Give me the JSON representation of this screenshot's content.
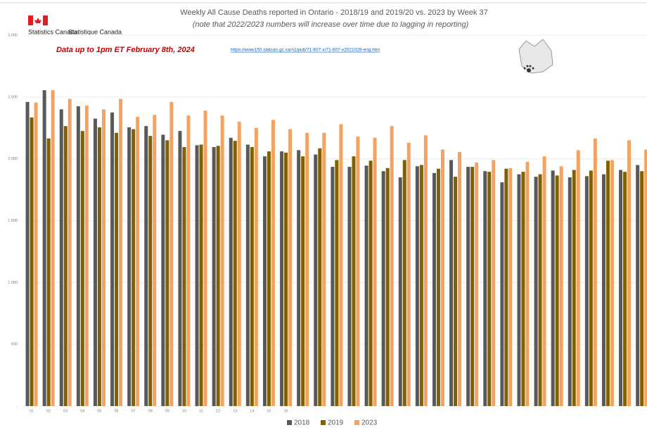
{
  "chart_data": {
    "type": "bar",
    "title": "Weekly All Cause Deaths reported in Ontario - 2018/19 and 2019/20 vs. 2023 by Week 37",
    "subtitle": "(note that 2022/2023 numbers will increase over time due to lagging in reporting)",
    "agency_en": "Statistics Canada",
    "agency_fr": "Statistique Canada",
    "note": "Data up to 1pm ET February 8th, 2024",
    "link": "https://www150.statcan.gc.ca/n1/pub/71-607-x/71-607-x2021028-eng.htm",
    "categories": [
      "01",
      "02",
      "03",
      "04",
      "05",
      "06",
      "07",
      "08",
      "09",
      "10",
      "11",
      "12",
      "13",
      "14",
      "15",
      "16",
      null,
      null,
      null,
      null,
      null,
      null,
      null,
      null,
      null,
      null,
      null,
      null,
      null,
      null,
      null,
      null,
      null,
      null,
      null,
      null,
      null
    ],
    "series": [
      {
        "name": "2018",
        "color": "#595959",
        "values": [
          2460,
          2555,
          2400,
          2425,
          2325,
          2375,
          2255,
          2265,
          2195,
          2225,
          2110,
          2095,
          2170,
          2115,
          2020,
          2060,
          2070,
          2035,
          1935,
          1935,
          1945,
          1900,
          1850,
          1940,
          1885,
          1990,
          1935,
          1900,
          1810,
          1875,
          1855,
          1905,
          1850,
          1860,
          1875,
          1910,
          1950
        ]
      },
      {
        "name": "2019",
        "color": "#806000",
        "values": [
          2335,
          2165,
          2265,
          2225,
          2255,
          2210,
          2240,
          2185,
          2150,
          2095,
          2115,
          2105,
          2145,
          2095,
          2060,
          2050,
          2020,
          2085,
          1990,
          2020,
          1985,
          1925,
          1990,
          1950,
          1920,
          1855,
          1935,
          1895,
          1920,
          1895,
          1875,
          1865,
          1910,
          1905,
          1985,
          1895,
          1900
        ]
      },
      {
        "name": "2023",
        "color": "#f4a261",
        "values": [
          2455,
          2555,
          2485,
          2430,
          2400,
          2485,
          2340,
          2355,
          2460,
          2350,
          2390,
          2350,
          2300,
          2250,
          2315,
          2240,
          2210,
          2210,
          2280,
          2180,
          2170,
          2265,
          2130,
          2190,
          2075,
          2055,
          1970,
          1990,
          1925,
          1975,
          2020,
          1940,
          2070,
          2165,
          1990,
          2150,
          2075
        ]
      }
    ],
    "ylim": [
      0,
      3000
    ],
    "yticks": [
      {
        "value": 0,
        "label": "-"
      },
      500,
      {
        "value": 1000,
        "label": "1,000"
      },
      {
        "value": 1500,
        "label": "1,500"
      },
      {
        "value": 2000,
        "label": "2,000"
      },
      {
        "value": 2500,
        "label": "2,500"
      },
      {
        "value": 3000,
        "label": "3,000"
      }
    ],
    "grid": true,
    "legend": "bottom"
  }
}
